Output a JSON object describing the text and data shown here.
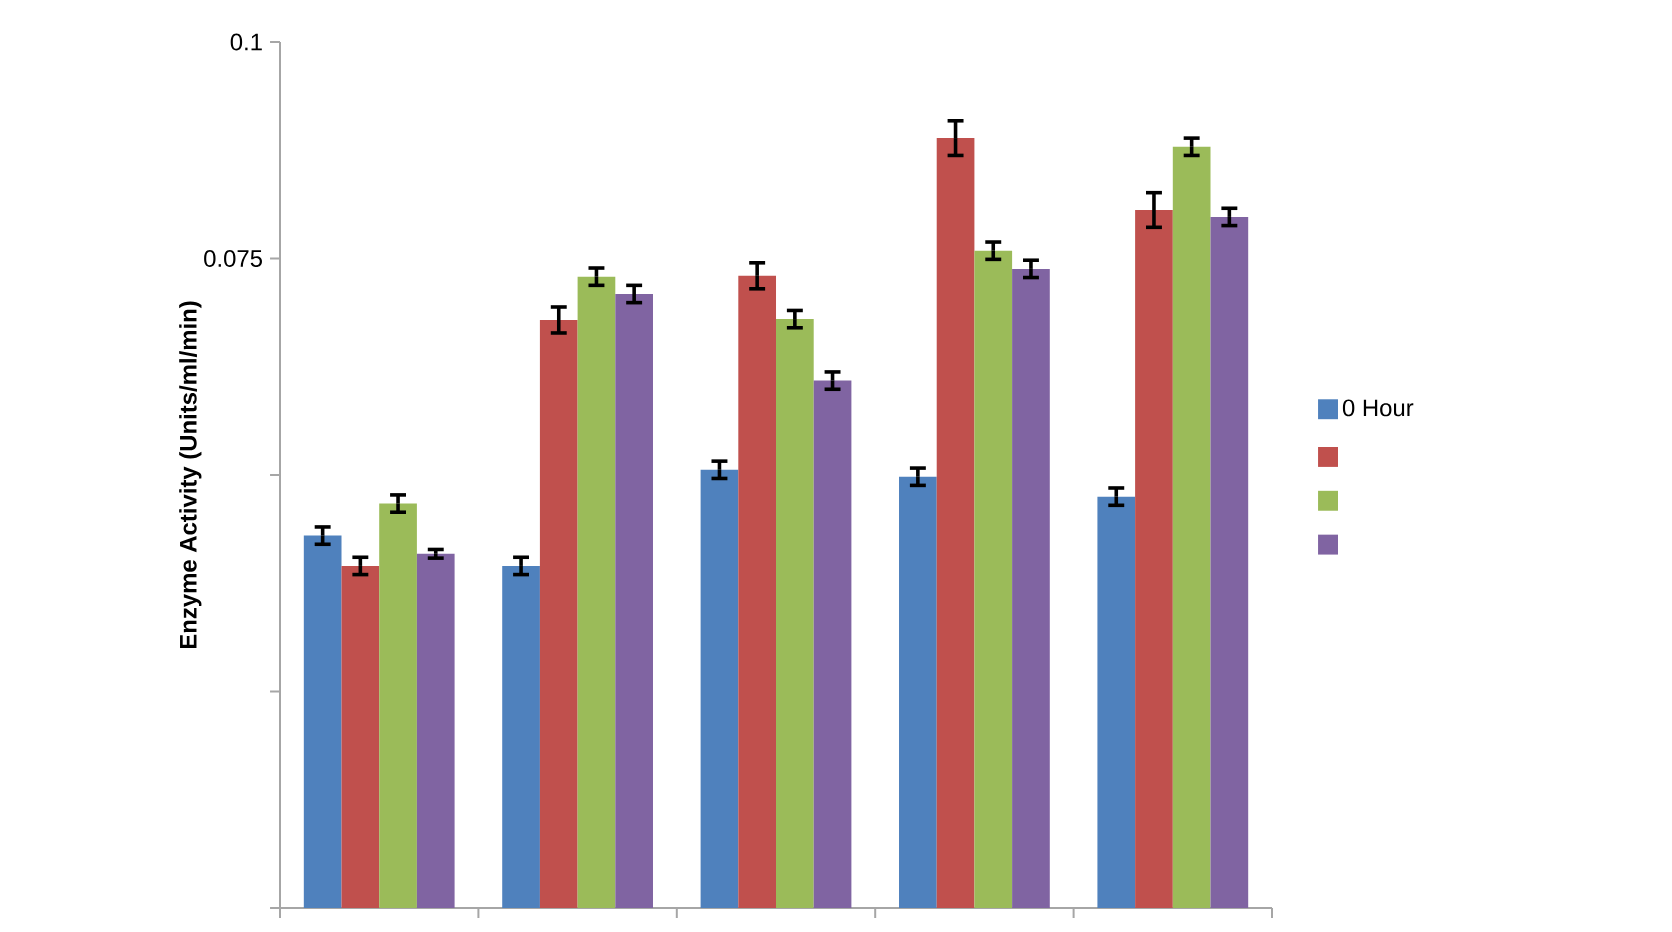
{
  "chart_data": {
    "type": "bar",
    "ylabel": "Enzyme Activity (Units/ml/min)",
    "categories": [
      null,
      null,
      null,
      null,
      null
    ],
    "ylim": [
      0,
      0.1
    ],
    "yticks": [
      {
        "value": 0,
        "label": null
      },
      {
        "value": 0.025,
        "label": null
      },
      {
        "value": 0.05,
        "label": null
      },
      0.075,
      0.1
    ],
    "legend": "right",
    "series": [
      {
        "name": "0 Hour",
        "color": "#4f81bd",
        "values": [
          0.043,
          0.0395,
          0.0506,
          0.0498,
          0.0475
        ],
        "errors": [
          0.001,
          0.001,
          0.001,
          0.001,
          0.001
        ]
      },
      {
        "color": "#c0504d",
        "values": [
          0.0395,
          0.0679,
          0.073,
          0.0889,
          0.0806
        ],
        "errors": [
          0.001,
          0.0015,
          0.0015,
          0.002,
          0.002
        ]
      },
      {
        "color": "#9bbb59",
        "values": [
          0.0467,
          0.0729,
          0.068,
          0.0759,
          0.0879
        ],
        "errors": [
          0.001,
          0.001,
          0.001,
          0.001,
          0.001
        ]
      },
      {
        "color": "#8064a2",
        "values": [
          0.0409,
          0.0709,
          0.0609,
          0.0738,
          0.0798
        ],
        "errors": [
          0.0005,
          0.001,
          0.001,
          0.001,
          0.001
        ]
      }
    ]
  }
}
